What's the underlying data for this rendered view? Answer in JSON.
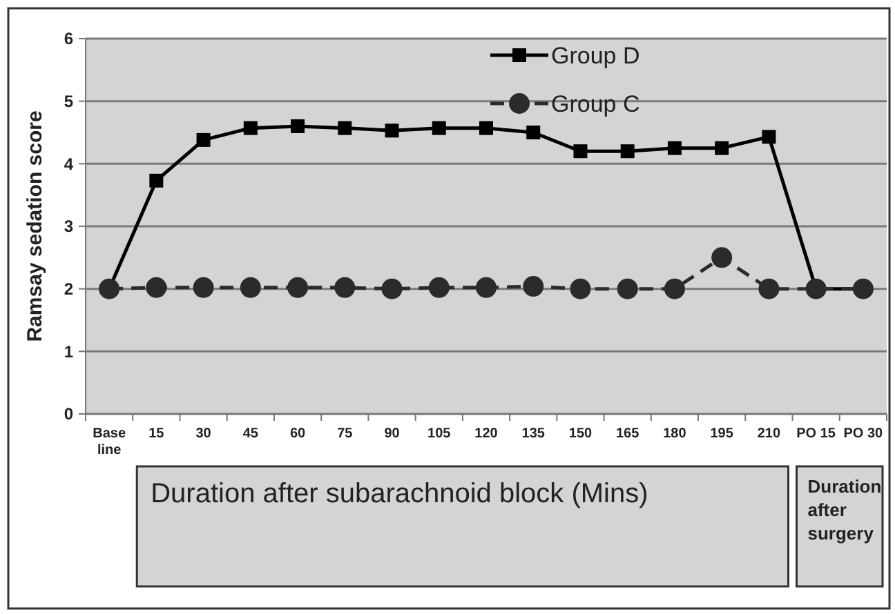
{
  "chart_data": {
    "type": "line",
    "ylabel": "Ramsay sedation score",
    "categories": [
      "Base line",
      "15",
      "30",
      "45",
      "60",
      "75",
      "90",
      "105",
      "120",
      "135",
      "150",
      "165",
      "180",
      "195",
      "210",
      "PO 15",
      "PO 30"
    ],
    "series": [
      {
        "name": "Group D",
        "color": "#000000",
        "marker": "square",
        "line_style": "solid",
        "values": [
          2,
          3.73,
          4.38,
          4.57,
          4.6,
          4.57,
          4.53,
          4.57,
          4.57,
          4.5,
          4.2,
          4.2,
          4.25,
          4.25,
          4.43,
          2,
          2
        ]
      },
      {
        "name": "Group C",
        "color": "#2b2b2b",
        "marker": "circle",
        "line_style": "dashed",
        "values": [
          2,
          2.02,
          2.02,
          2.02,
          2.02,
          2.02,
          2,
          2.02,
          2.02,
          2.04,
          2,
          2,
          2,
          2.5,
          2,
          2,
          2
        ]
      }
    ],
    "ylim": [
      0,
      6
    ],
    "yticks": [
      0,
      1,
      2,
      3,
      4,
      5,
      6
    ],
    "grid": "y",
    "legend": "top",
    "annotations": [
      "Duration after subarachnoid block (Mins)",
      "Duration after surgery"
    ]
  }
}
